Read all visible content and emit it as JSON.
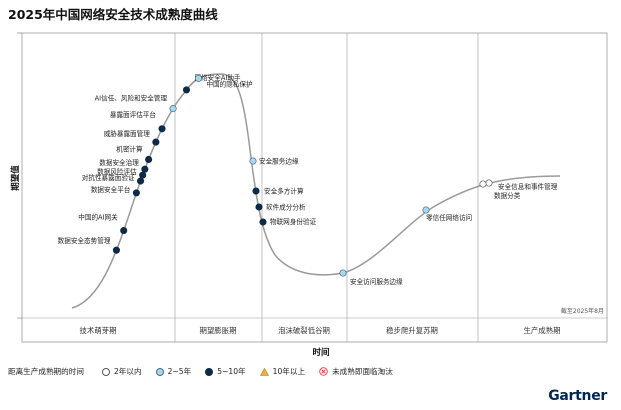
{
  "title": "2025年中国网络安全技术成熟度曲线",
  "chart_data": {
    "type": "scatter",
    "title": "2025年中国网络安全技术成熟度曲线",
    "xlabel": "时间",
    "ylabel": "期望值",
    "phases": [
      "技术萌芽期",
      "期望膨胀期",
      "泡沫破裂低谷期",
      "稳步爬升复苏期",
      "生产成熟期"
    ],
    "note": "截至2025年8月",
    "legend_title": "距离生产成熟期的时间",
    "legend": [
      {
        "key": "lt2",
        "label": "2年以内",
        "color": "#ffffff",
        "shape": "circle"
      },
      {
        "key": "2to5",
        "label": "2~5年",
        "color": "#a9d8ec",
        "shape": "circle"
      },
      {
        "key": "5to10",
        "label": "5~10年",
        "color": "#0e2a47",
        "shape": "circle"
      },
      {
        "key": "gt10",
        "label": "10年以上",
        "color": "#f2b13a",
        "shape": "triangle"
      },
      {
        "key": "obsolete",
        "label": "未成熟即面临淘汰",
        "color": "#e0413c",
        "shape": "x"
      }
    ],
    "points": [
      {
        "label": "数据安全态势管理",
        "t": 0.18,
        "cat": "5to10"
      },
      {
        "label": "中国的AI网关",
        "t": 0.23,
        "cat": "5to10"
      },
      {
        "label": "数据安全平台",
        "t": 0.325,
        "cat": "5to10"
      },
      {
        "label": "对抗性暴露面验证",
        "t": 0.355,
        "cat": "5to10"
      },
      {
        "label": "数据风险评估",
        "t": 0.37,
        "cat": "5to10"
      },
      {
        "label": "数据安全治理",
        "t": 0.385,
        "cat": "5to10"
      },
      {
        "label": "机密计算",
        "t": 0.41,
        "cat": "5to10"
      },
      {
        "label": "威胁暴露面管理",
        "t": 0.455,
        "cat": "5to10"
      },
      {
        "label": "暴露面评估平台",
        "t": 0.49,
        "cat": "5to10"
      },
      {
        "label": "AI信任、风险和安全管理",
        "t": 0.545,
        "cat": "2to5"
      },
      {
        "label": "网络安全AI助手",
        "t": 0.6,
        "cat": "5to10"
      },
      {
        "label": "中国的隐私保护",
        "t": 0.64,
        "cat": "2to5"
      }
    ]
  },
  "curve_labels": [
    {
      "label": "安全服务边缘",
      "cat": "2to5"
    },
    {
      "label": "安全多方计算",
      "cat": "5to10"
    },
    {
      "label": "软件成分分析",
      "cat": "5to10"
    },
    {
      "label": "物联网身份验证",
      "cat": "5to10"
    },
    {
      "label": "安全访问服务边缘",
      "cat": "2to5"
    },
    {
      "label": "零信任网络访问",
      "cat": "2to5"
    },
    {
      "label": "安全信息和事件管理",
      "cat": "lt2"
    },
    {
      "label": "数据分类",
      "cat": "lt2"
    }
  ],
  "logo": "Gartner"
}
